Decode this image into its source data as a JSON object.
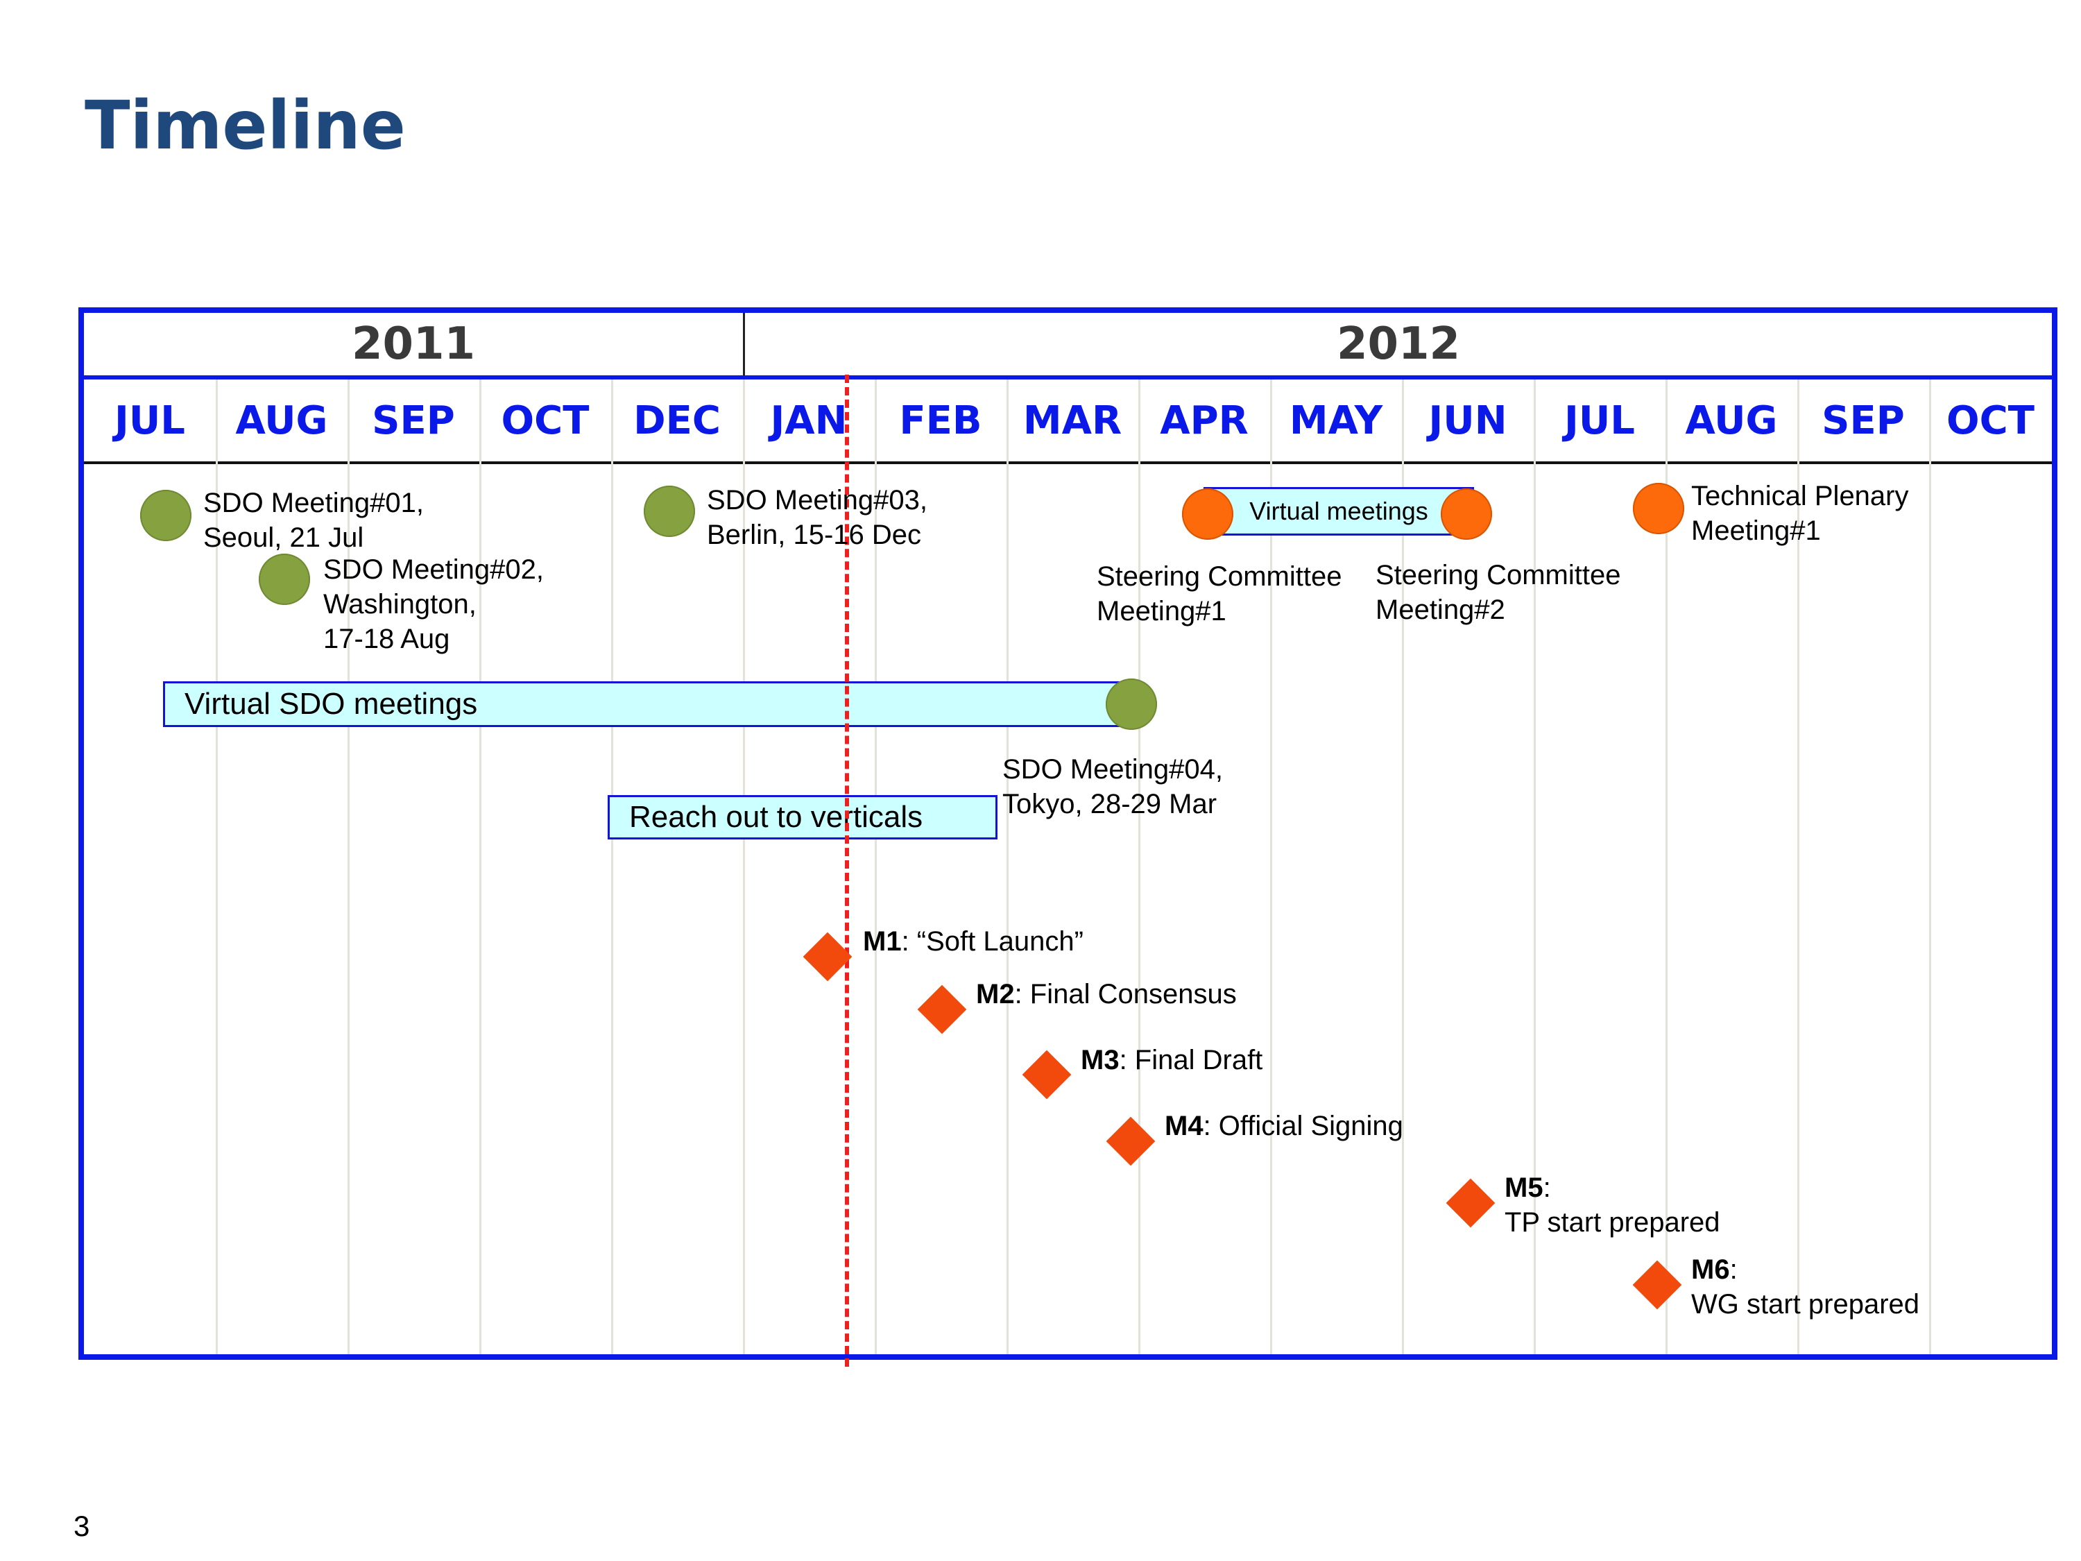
{
  "title": "Timeline",
  "page_number": "3",
  "years": [
    {
      "label": "2011"
    },
    {
      "label": "2012"
    }
  ],
  "months": [
    "JUL",
    "AUG",
    "SEP",
    "OCT",
    "DEC",
    "JAN",
    "FEB",
    "MAR",
    "APR",
    "MAY",
    "JUN",
    "JUL",
    "AUG",
    "SEP",
    "OCT"
  ],
  "meetings": {
    "sdo1": [
      "SDO Meeting#01,",
      "Seoul, 21 Jul"
    ],
    "sdo2": [
      "SDO Meeting#02,",
      "Washington,",
      "17-18 Aug"
    ],
    "sdo3": [
      "SDO Meeting#03,",
      "Berlin, 15-16 Dec"
    ],
    "sdo4": [
      "SDO Meeting#04,",
      "Tokyo, 28-29 Mar"
    ],
    "sc1": [
      "Steering Committee",
      "Meeting#1"
    ],
    "sc2": [
      "Steering Committee",
      "Meeting#2"
    ],
    "tp1": [
      "Technical Plenary",
      "Meeting#1"
    ]
  },
  "bars": {
    "virtual_sdo": "Virtual SDO meetings",
    "reach_out": "Reach out to verticals",
    "virtual_meetings": "Virtual meetings"
  },
  "milestones": [
    {
      "id": "M1",
      "lines": [
        ": “Soft Launch”"
      ]
    },
    {
      "id": "M2",
      "lines": [
        ": Final Consensus"
      ]
    },
    {
      "id": "M3",
      "lines": [
        ": Final Draft"
      ]
    },
    {
      "id": "M4",
      "lines": [
        ": Official Signing"
      ]
    },
    {
      "id": "M5",
      "lines": [
        ":",
        "TP start prepared"
      ]
    },
    {
      "id": "M6",
      "lines": [
        ":",
        "WG start prepared"
      ]
    }
  ],
  "colors": {
    "frame": "#0a18e8",
    "sdo_dot": "#86a13f",
    "committee_dot": "#fc6a0b",
    "milestone": "#f24a0d",
    "bar_fill": "#ccffff",
    "today_line": "#ee1f1f"
  }
}
